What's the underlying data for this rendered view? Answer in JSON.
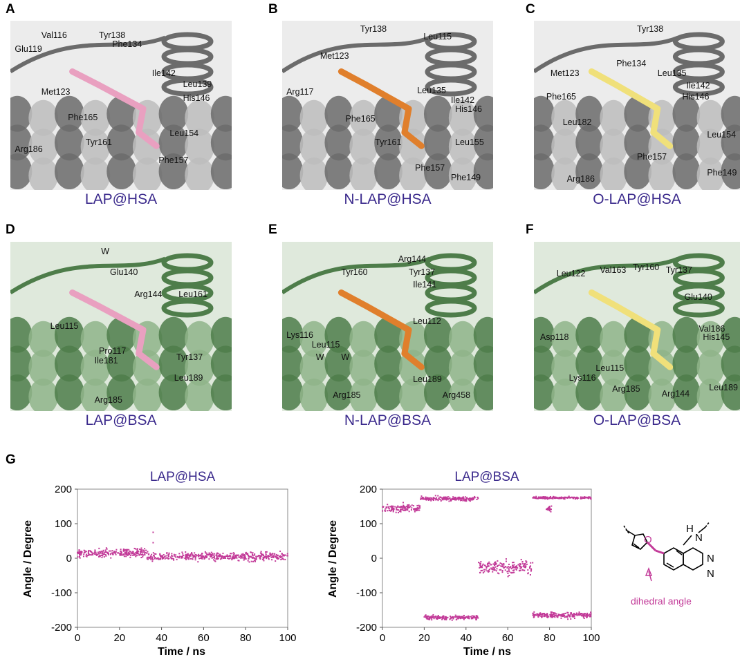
{
  "panels": [
    {
      "letter": "A",
      "caption": "LAP@HSA",
      "theme": "gray",
      "ligand": "#e9a0c0",
      "residues": [
        "Val116",
        "Tyr138",
        "Glu119",
        "Phe134",
        "Met123",
        "Ile142",
        "Leu139",
        "His146",
        "Phe165",
        "Tyr161",
        "Leu154",
        "Arg186",
        "Phe157"
      ]
    },
    {
      "letter": "B",
      "caption": "N-LAP@HSA",
      "theme": "gray",
      "ligand": "#e07f2c",
      "residues": [
        "Tyr138",
        "Leu115",
        "Met123",
        "Arg117",
        "Leu135",
        "Ile142",
        "Phe165",
        "His146",
        "Tyr161",
        "Leu155",
        "Phe157",
        "Phe149"
      ]
    },
    {
      "letter": "C",
      "caption": "O-LAP@HSA",
      "theme": "gray",
      "ligand": "#f0e07a",
      "residues": [
        "Tyr138",
        "Phe134",
        "Met123",
        "Leu135",
        "Ile142",
        "Phe165",
        "His146",
        "Leu182",
        "Leu154",
        "Phe157",
        "Phe149",
        "Arg186"
      ]
    },
    {
      "letter": "D",
      "caption": "LAP@BSA",
      "theme": "green",
      "ligand": "#e9a0c0",
      "residues": [
        "W",
        "Glu140",
        "Arg144",
        "Leu161",
        "Leu115",
        "Pro117",
        "Tyr137",
        "Ile181",
        "Leu189",
        "Arg185"
      ]
    },
    {
      "letter": "E",
      "caption": "N-LAP@BSA",
      "theme": "green",
      "ligand": "#e07f2c",
      "residues": [
        "Tyr160",
        "Arg144",
        "Tyr137",
        "Ile141",
        "Lys116",
        "Leu112",
        "Leu115",
        "W",
        "W",
        "Arg185",
        "Leu189",
        "Arg458"
      ]
    },
    {
      "letter": "F",
      "caption": "O-LAP@BSA",
      "theme": "green",
      "ligand": "#f0e07a",
      "residues": [
        "Val163",
        "Tyr160",
        "Tyr137",
        "Leu122",
        "Glu140",
        "Asp118",
        "Val186",
        "His145",
        "Leu115",
        "Lys116",
        "Arg185",
        "Arg144",
        "Leu189"
      ]
    }
  ],
  "panel_g": {
    "letter": "G",
    "xlabel": "Time / ns",
    "ylabel": "Angle / Degree",
    "dihedral_label": "dihedral angle",
    "structure_atoms": [
      "O",
      "N",
      "H",
      "N",
      "N"
    ]
  },
  "chart_data": [
    {
      "type": "scatter",
      "title": "LAP@HSA",
      "xlabel": "Time / ns",
      "ylabel": "Angle / Degree",
      "xlim": [
        0,
        100
      ],
      "ylim": [
        -200,
        200
      ],
      "xticks": [
        0,
        20,
        40,
        60,
        80,
        100
      ],
      "yticks": [
        200,
        100,
        0,
        -100,
        -200
      ],
      "color": "#c23a98",
      "series": [
        {
          "segments": [
            {
              "x": [
                0,
                33
              ],
              "center": 15,
              "spread": 18
            },
            {
              "x": [
                33,
                100
              ],
              "center": 5,
              "spread": 20
            }
          ]
        }
      ],
      "outliers": [
        {
          "x": 36,
          "y": 75
        },
        {
          "x": 36,
          "y": 45
        }
      ]
    },
    {
      "type": "scatter",
      "title": "LAP@BSA",
      "xlabel": "Time / ns",
      "ylabel": "Angle / Degree",
      "xlim": [
        0,
        100
      ],
      "ylim": [
        -200,
        200
      ],
      "xticks": [
        0,
        20,
        40,
        60,
        80,
        100
      ],
      "yticks": [
        200,
        100,
        0,
        -100,
        -200
      ],
      "color": "#c23a98",
      "series": [
        {
          "segments": [
            {
              "x": [
                0,
                18
              ],
              "center": 145,
              "spread": 20
            },
            {
              "x": [
                18,
                46
              ],
              "center": 172,
              "spread": 10
            },
            {
              "x": [
                20,
                46
              ],
              "center": -172,
              "spread": 10
            },
            {
              "x": [
                46,
                72
              ],
              "center": -25,
              "spread": 35
            },
            {
              "x": [
                72,
                100
              ],
              "center": -165,
              "spread": 14
            },
            {
              "x": [
                72,
                100
              ],
              "center": 175,
              "spread": 5
            },
            {
              "x": [
                78,
                81
              ],
              "center": 145,
              "spread": 15
            }
          ]
        }
      ]
    }
  ]
}
